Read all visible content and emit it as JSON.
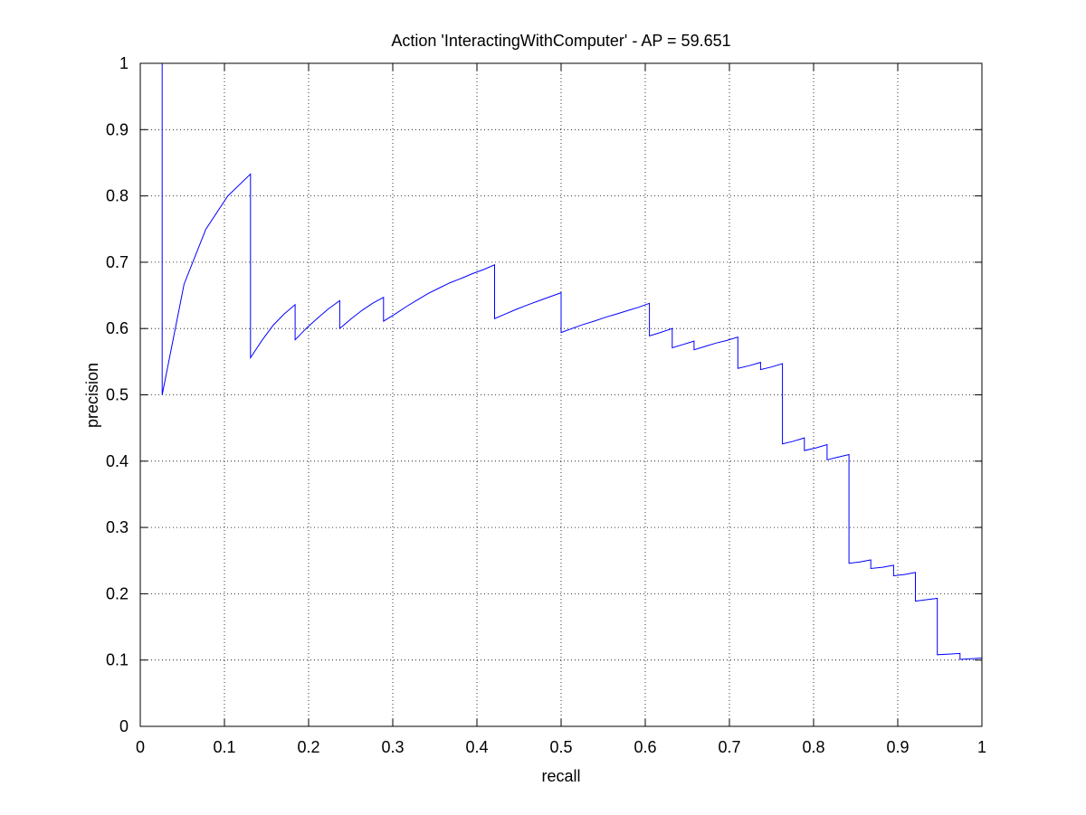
{
  "chart_data": {
    "type": "line",
    "title": "Action 'InteractingWithComputer' - AP = 59.651",
    "xlabel": "recall",
    "ylabel": "precision",
    "xlim": [
      0,
      1
    ],
    "ylim": [
      0,
      1
    ],
    "xticks": [
      "0",
      "0.1",
      "0.2",
      "0.3",
      "0.4",
      "0.5",
      "0.6",
      "0.7",
      "0.8",
      "0.9",
      "1"
    ],
    "yticks": [
      "0",
      "0.1",
      "0.2",
      "0.3",
      "0.4",
      "0.5",
      "0.6",
      "0.7",
      "0.8",
      "0.9",
      "1"
    ],
    "grid": true,
    "line_color": "#0000ff",
    "series": [
      {
        "x": [
          0.026,
          0.026,
          0.026,
          0.052,
          0.078,
          0.104,
          0.131,
          0.131,
          0.145,
          0.158,
          0.171,
          0.184,
          0.184,
          0.197,
          0.21,
          0.223,
          0.237,
          0.237,
          0.25,
          0.263,
          0.276,
          0.289,
          0.289,
          0.303,
          0.316,
          0.329,
          0.342,
          0.355,
          0.368,
          0.382,
          0.395,
          0.408,
          0.421,
          0.421,
          0.434,
          0.447,
          0.461,
          0.474,
          0.487,
          0.5,
          0.5,
          0.513,
          0.526,
          0.539,
          0.553,
          0.566,
          0.579,
          0.592,
          0.605,
          0.605,
          0.618,
          0.632,
          0.632,
          0.645,
          0.658,
          0.658,
          0.671,
          0.684,
          0.697,
          0.71,
          0.71,
          0.724,
          0.737,
          0.737,
          0.75,
          0.763,
          0.763,
          0.776,
          0.789,
          0.789,
          0.803,
          0.816,
          0.816,
          0.829,
          0.842,
          0.842,
          0.855,
          0.868,
          0.868,
          0.882,
          0.895,
          0.895,
          0.908,
          0.921,
          0.921,
          0.934,
          0.947,
          0.947,
          0.961,
          0.974,
          0.974,
          0.987,
          1.0
        ],
        "y": [
          1.0,
          1.0,
          0.5,
          0.667,
          0.75,
          0.8,
          0.833,
          0.556,
          0.583,
          0.605,
          0.622,
          0.636,
          0.583,
          0.6,
          0.615,
          0.629,
          0.642,
          0.6,
          0.614,
          0.627,
          0.638,
          0.647,
          0.611,
          0.622,
          0.633,
          0.643,
          0.653,
          0.661,
          0.669,
          0.676,
          0.683,
          0.689,
          0.696,
          0.615,
          0.622,
          0.629,
          0.636,
          0.642,
          0.648,
          0.654,
          0.594,
          0.6,
          0.606,
          0.611,
          0.617,
          0.622,
          0.627,
          0.632,
          0.638,
          0.589,
          0.594,
          0.6,
          0.571,
          0.576,
          0.581,
          0.568,
          0.573,
          0.578,
          0.582,
          0.587,
          0.54,
          0.544,
          0.549,
          0.538,
          0.542,
          0.547,
          0.426,
          0.43,
          0.435,
          0.416,
          0.42,
          0.425,
          0.402,
          0.406,
          0.41,
          0.246,
          0.248,
          0.251,
          0.238,
          0.24,
          0.243,
          0.227,
          0.229,
          0.232,
          0.189,
          0.191,
          0.193,
          0.108,
          0.109,
          0.11,
          0.101,
          0.102,
          0.103
        ]
      }
    ]
  }
}
